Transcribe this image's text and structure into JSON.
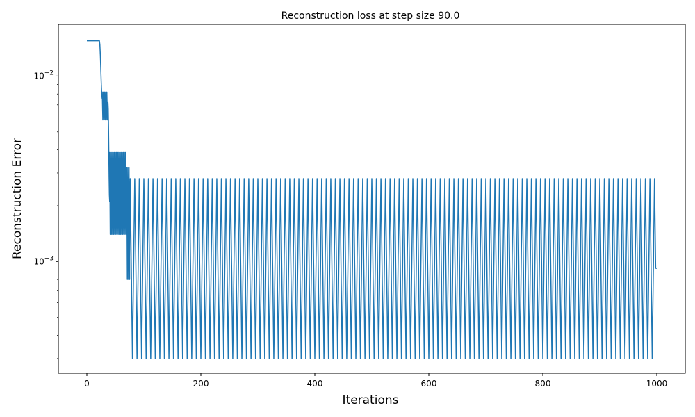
{
  "chart_data": {
    "type": "line",
    "title": "Reconstruction loss at step size 90.0",
    "xlabel": "Iterations",
    "ylabel": "Reconstruction Error",
    "xlim": [
      -50,
      1050
    ],
    "ylim": [
      0.00025,
      0.019
    ],
    "yscale": "log",
    "grid": false,
    "line_color": "#1f77b4",
    "x_ticks": [
      0,
      200,
      400,
      600,
      800,
      1000
    ],
    "x_tick_labels": [
      "0",
      "200",
      "400",
      "600",
      "800",
      "1000"
    ],
    "y_major_ticks": [
      0.001,
      0.01
    ],
    "y_tick_labels": [
      {
        "base": "10",
        "exp": "−3"
      },
      {
        "base": "10",
        "exp": "−2"
      }
    ],
    "y_minor_ticks": [
      0.0003,
      0.0004,
      0.0005,
      0.0006,
      0.0007,
      0.0008,
      0.0009,
      0.002,
      0.003,
      0.004,
      0.005,
      0.006,
      0.007,
      0.008,
      0.009
    ],
    "series": [
      {
        "phases": [
          {
            "x_start": 0,
            "x_end": 22,
            "type": "flat",
            "value": 0.0155
          },
          {
            "x_start": 22,
            "x_end": 27,
            "type": "drop",
            "from": 0.0155,
            "to": 0.0075
          },
          {
            "x_start": 27,
            "x_end": 37,
            "type": "oscillate",
            "period": 2,
            "high": 0.0082,
            "low": 0.0058
          },
          {
            "x_start": 37,
            "x_end": 40,
            "type": "drop",
            "from": 0.0072,
            "to": 0.0021
          },
          {
            "x_start": 40,
            "x_end": 70,
            "type": "oscillate",
            "period": 2,
            "high": 0.0039,
            "low": 0.0014
          },
          {
            "x_start": 70,
            "x_end": 76,
            "type": "oscillate",
            "period": 2,
            "high": 0.0032,
            "low": 0.0008
          },
          {
            "x_start": 76,
            "x_end": 1000,
            "type": "oscillate",
            "period": 4,
            "high": 0.0028,
            "low": 0.0003,
            "mid": 0.00092
          }
        ],
        "final_value": 0.00092
      }
    ]
  }
}
